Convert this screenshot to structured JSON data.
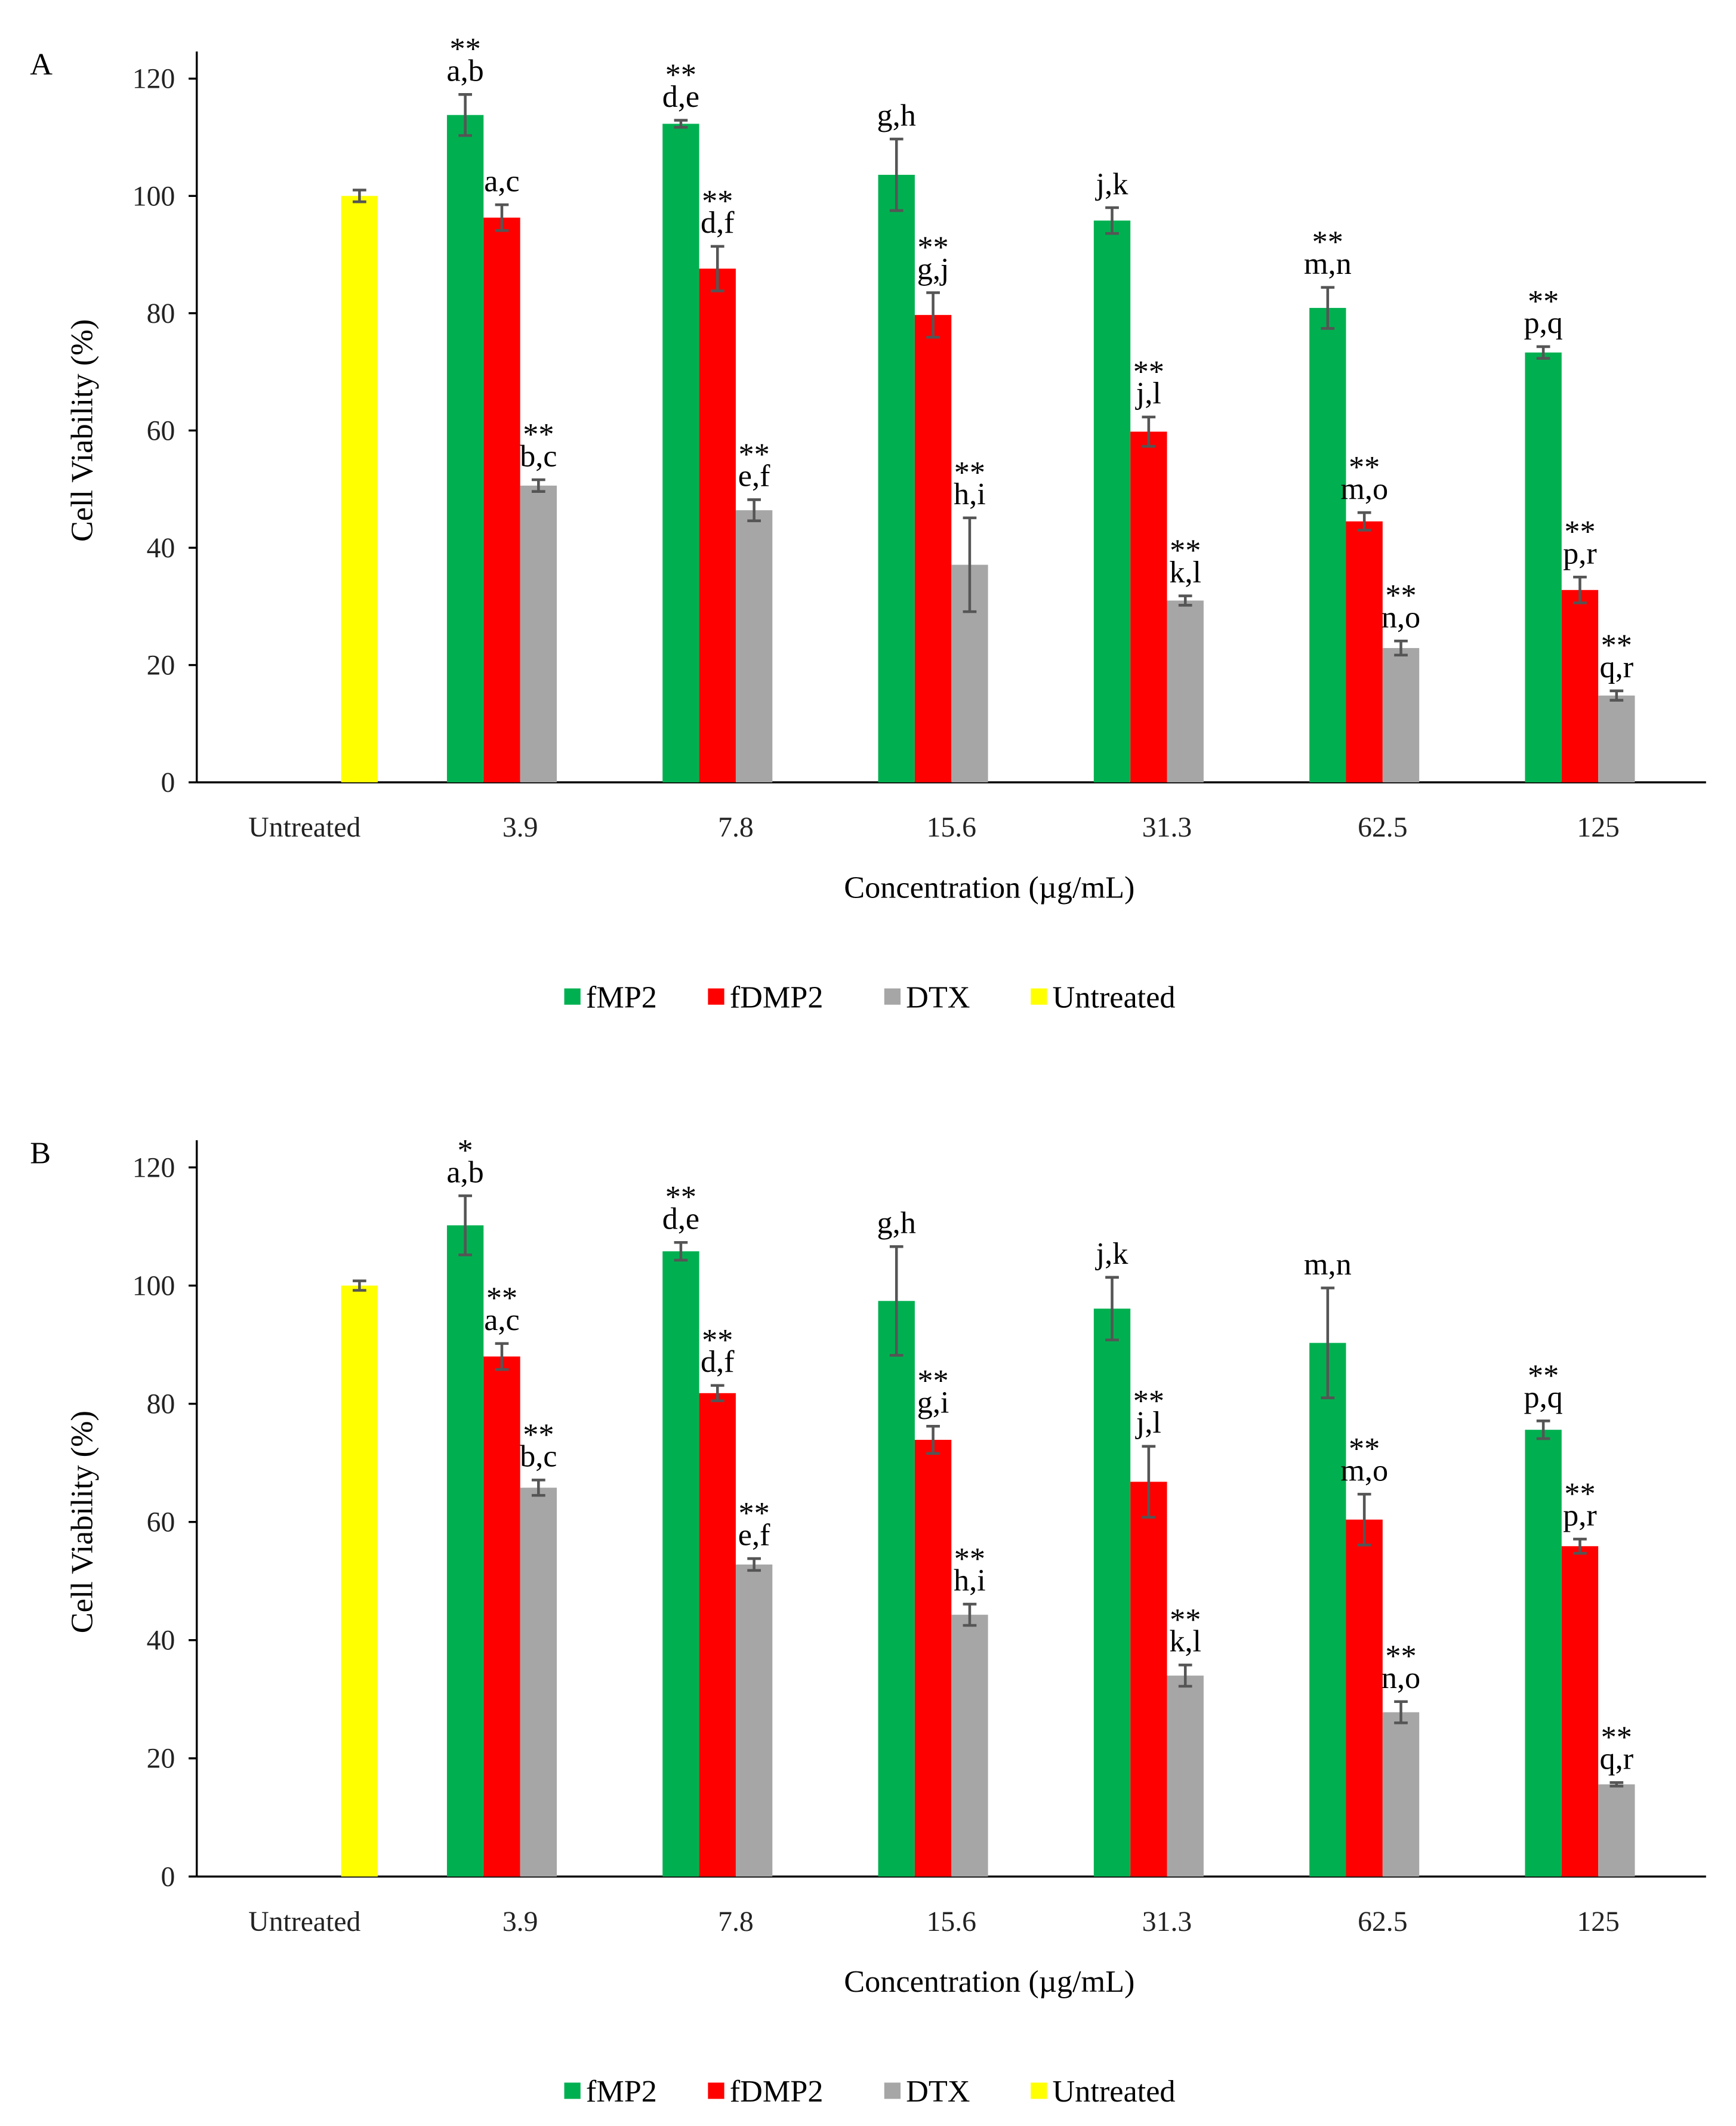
{
  "chart_data": [
    {
      "type": "bar",
      "panel": "A",
      "ylabel": "Cell Viability (%)",
      "xlabel": "Concentration (µg/mL)",
      "categories": [
        "Untreated",
        "3.9",
        "7.8",
        "15.6",
        "31.3",
        "62.5",
        "125"
      ],
      "ylim": [
        0,
        120
      ],
      "yticks": [
        0,
        20,
        40,
        60,
        80,
        100,
        120
      ],
      "series": [
        {
          "name": "fMP2",
          "color": "#00b050",
          "values": [
            null,
            113.8,
            112.3,
            103.6,
            95.8,
            80.9,
            73.3
          ],
          "errors": [
            null,
            3.5,
            0.6,
            6.1,
            2.2,
            3.5,
            1.0
          ],
          "letters": [
            null,
            "a,b",
            "d,e",
            "g,h",
            "j,k",
            "m,n",
            "p,q"
          ],
          "significance": [
            null,
            "**",
            "**",
            null,
            null,
            "**",
            "**"
          ]
        },
        {
          "name": "fDMP2",
          "color": "#ff0000",
          "values": [
            null,
            96.3,
            87.6,
            79.7,
            59.8,
            44.5,
            32.8
          ],
          "errors": [
            null,
            2.2,
            3.8,
            3.8,
            2.5,
            1.5,
            2.2
          ],
          "letters": [
            null,
            "a,c",
            "d,f",
            "g,j",
            "j,l",
            "m,o",
            "p,r"
          ],
          "significance": [
            null,
            null,
            "**",
            "**",
            "**",
            "**",
            "**"
          ]
        },
        {
          "name": "DTX",
          "color": "#a6a6a6",
          "values": [
            null,
            50.6,
            46.4,
            37.1,
            31.0,
            22.9,
            14.8
          ],
          "errors": [
            null,
            1.0,
            1.8,
            8.0,
            0.8,
            1.2,
            0.8
          ],
          "letters": [
            null,
            "b,c",
            "e,f",
            "h,i",
            "k,l",
            "n,o",
            "q,r"
          ],
          "significance": [
            null,
            "**",
            "**",
            "**",
            "**",
            "**",
            "**"
          ]
        },
        {
          "name": "Untreated",
          "color": "#ffff00",
          "values": [
            100,
            null,
            null,
            null,
            null,
            null,
            null
          ],
          "errors": [
            1.0,
            null,
            null,
            null,
            null,
            null,
            null
          ]
        }
      ]
    },
    {
      "type": "bar",
      "panel": "B",
      "ylabel": "Cell Viability (%)",
      "xlabel": "Concentration (µg/mL)",
      "categories": [
        "Untreated",
        "3.9",
        "7.8",
        "15.6",
        "31.3",
        "62.5",
        "125"
      ],
      "ylim": [
        0,
        120
      ],
      "yticks": [
        0,
        20,
        40,
        60,
        80,
        100,
        120
      ],
      "series": [
        {
          "name": "fMP2",
          "color": "#00b050",
          "values": [
            null,
            110.2,
            105.8,
            97.4,
            96.1,
            90.3,
            75.6
          ],
          "errors": [
            null,
            5.0,
            1.5,
            9.2,
            5.3,
            9.3,
            1.5
          ],
          "letters": [
            null,
            "a,b",
            "d,e",
            "g,h",
            "j,k",
            "m,n",
            "p,q"
          ],
          "significance": [
            null,
            "*",
            "**",
            null,
            null,
            null,
            "**"
          ]
        },
        {
          "name": "fDMP2",
          "color": "#ff0000",
          "values": [
            null,
            88.0,
            81.8,
            73.9,
            66.8,
            60.4,
            55.9
          ],
          "errors": [
            null,
            2.2,
            1.3,
            2.3,
            6.0,
            4.3,
            1.2
          ],
          "letters": [
            null,
            "a,c",
            "d,f",
            "g,i",
            "j,l",
            "m,o",
            "p,r"
          ],
          "significance": [
            null,
            "**",
            "**",
            "**",
            "**",
            "**",
            "**"
          ]
        },
        {
          "name": "DTX",
          "color": "#a6a6a6",
          "values": [
            null,
            65.8,
            52.8,
            44.3,
            34.0,
            27.8,
            15.6
          ],
          "errors": [
            null,
            1.3,
            1.0,
            1.8,
            1.8,
            1.8,
            0.3
          ],
          "letters": [
            null,
            "b,c",
            "e,f",
            "h,i",
            "k,l",
            "n,o",
            "q,r"
          ],
          "significance": [
            null,
            "**",
            "**",
            "**",
            "**",
            "**",
            "**"
          ]
        },
        {
          "name": "Untreated",
          "color": "#ffff00",
          "values": [
            100,
            null,
            null,
            null,
            null,
            null,
            null
          ],
          "errors": [
            0.8,
            null,
            null,
            null,
            null,
            null,
            null
          ]
        }
      ]
    }
  ]
}
